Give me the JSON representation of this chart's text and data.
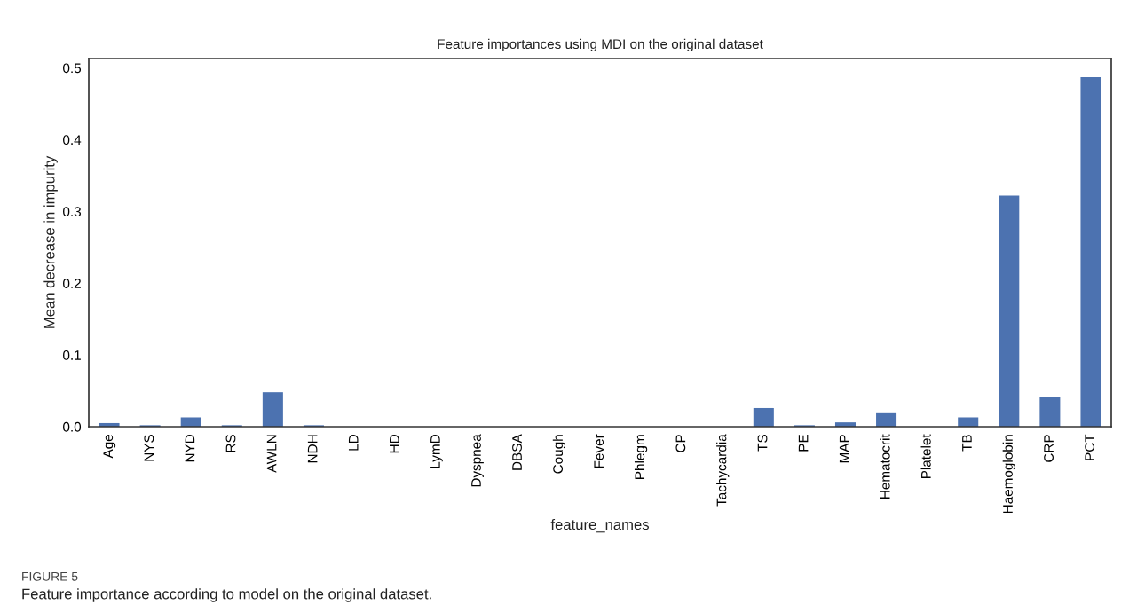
{
  "chart_data": {
    "type": "bar",
    "title": "Feature importances using MDI on the original dataset",
    "xlabel": "feature_names",
    "ylabel": "Mean decrease in impurity",
    "categories": [
      "Age",
      "NYS",
      "NYD",
      "RS",
      "AWLN",
      "NDH",
      "LD",
      "HD",
      "LymD",
      "Dyspnea",
      "DBSA",
      "Cough",
      "Fever",
      "Phlegm",
      "CP",
      "Tachycardia",
      "TS",
      "PE",
      "MAP",
      "Hematocrit",
      "Platelet",
      "TB",
      "Haemoglobin",
      "CRP",
      "PCT"
    ],
    "values": [
      0.005,
      0.002,
      0.013,
      0.002,
      0.048,
      0.002,
      0,
      0,
      0,
      0,
      0,
      0,
      0,
      0,
      0,
      0,
      0.026,
      0.002,
      0.006,
      0.02,
      0,
      0.013,
      0.322,
      0.042,
      0.487
    ],
    "color": "#4c72b0",
    "ylim": [
      0,
      0.513
    ],
    "yticks": [
      {
        "value": 0,
        "label": "0.0"
      },
      0.1,
      0.2,
      0.3,
      0.4,
      0.5
    ],
    "grid": false,
    "annotations": [
      "FIGURE 5",
      "Feature importance according to model on the original dataset."
    ]
  }
}
